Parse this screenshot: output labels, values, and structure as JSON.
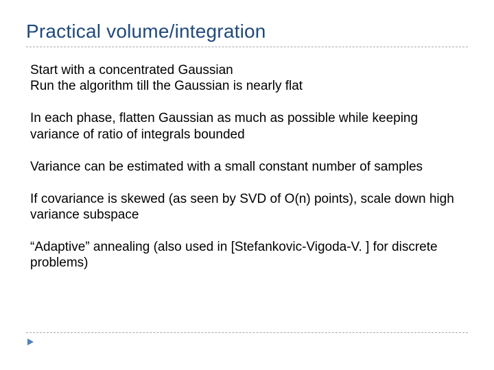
{
  "title": {
    "text": "Practical volume/integration",
    "color": "#1f497d",
    "fontsize": 28
  },
  "divider": {
    "color": "#a7a7a7"
  },
  "arrow": {
    "color": "#4f81bd"
  },
  "body": {
    "color": "#000000",
    "fontsize": 19
  },
  "paragraphs": {
    "p1_l1": "Start with a concentrated Gaussian",
    "p1_l2": "Run the algorithm till the Gaussian is nearly flat",
    "p2": "In each phase, flatten Gaussian as much as possible while keeping variance of ratio of integrals bounded",
    "p3": "Variance can be estimated with a small constant number of samples",
    "p4": "If covariance is skewed (as seen by SVD of O(n) points), scale down high variance subspace",
    "p5": "“Adaptive” annealing (also used in [Stefankovic-Vigoda-V. ] for discrete problems)"
  }
}
